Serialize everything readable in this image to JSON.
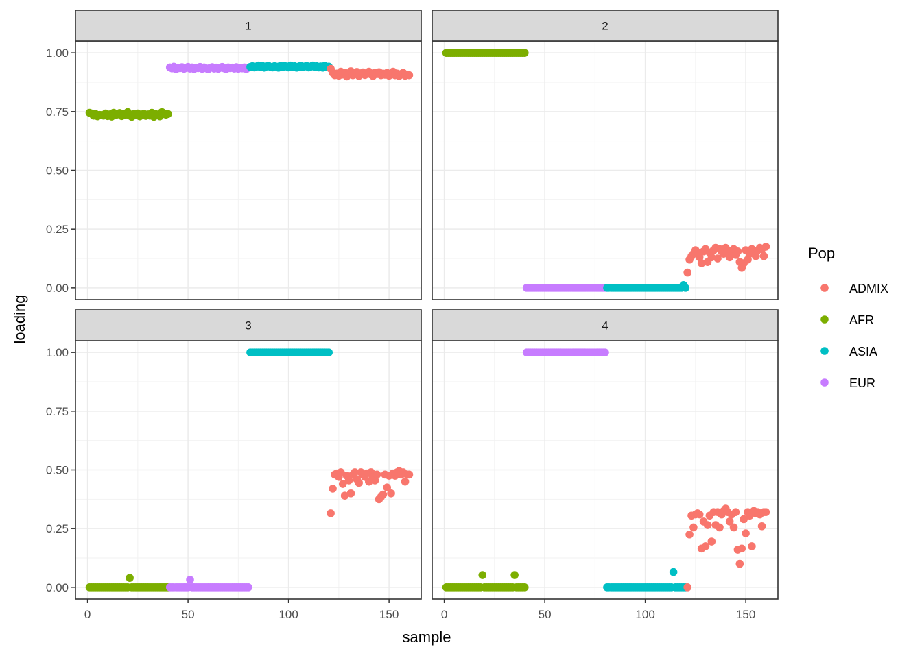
{
  "chart_data": {
    "type": "scatter",
    "facet_layout": "2x2",
    "xlabel": "sample",
    "ylabel": "loading",
    "xlim": [
      -6,
      166
    ],
    "ylim": [
      -0.05,
      1.05
    ],
    "x_ticks": [
      0,
      50,
      100,
      150
    ],
    "y_ticks": [
      0.0,
      0.25,
      0.5,
      0.75,
      1.0
    ],
    "x_tick_labels": [
      "0",
      "50",
      "100",
      "150"
    ],
    "y_tick_labels": [
      "0.00",
      "0.25",
      "0.50",
      "0.75",
      "1.00"
    ],
    "grid": true,
    "legend": {
      "title": "Pop",
      "position": "right",
      "entries": [
        {
          "label": "ADMIX",
          "color": "#F8766D"
        },
        {
          "label": "AFR",
          "color": "#7CAE00"
        },
        {
          "label": "ASIA",
          "color": "#00BFC4"
        },
        {
          "label": "EUR",
          "color": "#C77CFF"
        }
      ]
    },
    "panels": [
      {
        "strip": "1",
        "series": [
          {
            "name": "AFR",
            "x_range": [
              1,
              40
            ],
            "values": [
              0.745,
              0.742,
              0.733,
              0.74,
              0.73,
              0.736,
              0.735,
              0.733,
              0.742,
              0.731,
              0.738,
              0.729,
              0.745,
              0.735,
              0.74,
              0.744,
              0.731,
              0.741,
              0.737,
              0.748,
              0.733,
              0.728,
              0.739,
              0.736,
              0.742,
              0.73,
              0.735,
              0.741,
              0.732,
              0.738,
              0.733,
              0.745,
              0.728,
              0.739,
              0.736,
              0.73,
              0.748,
              0.742,
              0.737,
              0.74
            ]
          },
          {
            "name": "EUR",
            "x_range": [
              41,
              80
            ],
            "values": [
              0.938,
              0.934,
              0.941,
              0.93,
              0.937,
              0.935,
              0.939,
              0.932,
              0.936,
              0.94,
              0.933,
              0.938,
              0.931,
              0.937,
              0.935,
              0.94,
              0.932,
              0.938,
              0.934,
              0.93,
              0.936,
              0.939,
              0.933,
              0.937,
              0.932,
              0.936,
              0.94,
              0.934,
              0.931,
              0.938,
              0.935,
              0.937,
              0.933,
              0.939,
              0.932,
              0.936,
              0.934,
              0.938,
              0.931,
              0.937
            ]
          },
          {
            "name": "ASIA",
            "x_range": [
              81,
              120
            ],
            "values": [
              0.94,
              0.943,
              0.938,
              0.941,
              0.946,
              0.939,
              0.944,
              0.937,
              0.942,
              0.945,
              0.94,
              0.938,
              0.943,
              0.941,
              0.937,
              0.945,
              0.939,
              0.944,
              0.942,
              0.938,
              0.946,
              0.94,
              0.943,
              0.937,
              0.941,
              0.945,
              0.939,
              0.942,
              0.944,
              0.938,
              0.941,
              0.946,
              0.94,
              0.943,
              0.938,
              0.942,
              0.937,
              0.945,
              0.94,
              0.941
            ]
          },
          {
            "name": "ADMIX",
            "x_range": [
              121,
              160
            ],
            "values": [
              0.932,
              0.915,
              0.905,
              0.912,
              0.903,
              0.92,
              0.908,
              0.916,
              0.9,
              0.911,
              0.922,
              0.905,
              0.914,
              0.919,
              0.902,
              0.91,
              0.917,
              0.906,
              0.912,
              0.92,
              0.908,
              0.902,
              0.915,
              0.91,
              0.918,
              0.905,
              0.912,
              0.907,
              0.915,
              0.903,
              0.91,
              0.92,
              0.905,
              0.912,
              0.902,
              0.91,
              0.915,
              0.903,
              0.908,
              0.905
            ]
          }
        ]
      },
      {
        "strip": "2",
        "series": [
          {
            "name": "AFR",
            "x_range": [
              1,
              40
            ],
            "values": [
              1.0,
              1.0,
              1.0,
              1.0,
              1.0,
              1.0,
              1.0,
              1.0,
              1.0,
              1.0,
              1.0,
              1.0,
              1.0,
              1.0,
              1.0,
              1.0,
              1.0,
              1.0,
              1.0,
              1.0,
              1.0,
              1.0,
              1.0,
              1.0,
              1.0,
              1.0,
              1.0,
              1.0,
              1.0,
              1.0,
              1.0,
              1.0,
              1.0,
              1.0,
              1.0,
              1.0,
              1.0,
              1.0,
              1.0,
              1.0
            ]
          },
          {
            "name": "EUR",
            "x_range": [
              41,
              80
            ],
            "values": [
              0.0,
              0.0,
              0.0,
              0.0,
              0.0,
              0.0,
              0.0,
              0.0,
              0.0,
              0.0,
              0.0,
              0.0,
              0.0,
              0.0,
              0.0,
              0.0,
              0.0,
              0.0,
              0.0,
              0.0,
              0.0,
              0.0,
              0.0,
              0.0,
              0.0,
              0.0,
              0.0,
              0.0,
              0.0,
              0.0,
              0.0,
              0.0,
              0.0,
              0.0,
              0.0,
              0.0,
              0.0,
              0.0,
              0.0,
              0.0
            ]
          },
          {
            "name": "ASIA",
            "x_range": [
              81,
              120
            ],
            "values": [
              0.0,
              0.0,
              0.0,
              0.0,
              0.0,
              0.0,
              0.0,
              0.0,
              0.0,
              0.0,
              0.0,
              0.0,
              0.0,
              0.0,
              0.0,
              0.0,
              0.0,
              0.0,
              0.0,
              0.0,
              0.0,
              0.0,
              0.0,
              0.0,
              0.0,
              0.0,
              0.0,
              0.0,
              0.0,
              0.0,
              0.0,
              0.0,
              0.0,
              0.0,
              0.0,
              0.0,
              0.0,
              0.0,
              0.012,
              0.0
            ]
          },
          {
            "name": "ADMIX",
            "x_range": [
              121,
              160
            ],
            "values": [
              0.065,
              0.12,
              0.135,
              0.145,
              0.16,
              0.15,
              0.13,
              0.105,
              0.155,
              0.165,
              0.11,
              0.15,
              0.13,
              0.16,
              0.17,
              0.125,
              0.165,
              0.155,
              0.145,
              0.17,
              0.16,
              0.13,
              0.15,
              0.165,
              0.14,
              0.155,
              0.11,
              0.085,
              0.105,
              0.16,
              0.12,
              0.145,
              0.165,
              0.15,
              0.135,
              0.16,
              0.17,
              0.165,
              0.135,
              0.175
            ]
          }
        ]
      },
      {
        "strip": "3",
        "series": [
          {
            "name": "AFR",
            "x_range": [
              1,
              40
            ],
            "values": [
              0.0,
              0.0,
              0.0,
              0.0,
              0.0,
              0.0,
              0.0,
              0.0,
              0.0,
              0.0,
              0.0,
              0.0,
              0.0,
              0.0,
              0.0,
              0.0,
              0.0,
              0.0,
              0.0,
              0.0,
              0.04,
              0.0,
              0.0,
              0.0,
              0.0,
              0.0,
              0.0,
              0.0,
              0.0,
              0.0,
              0.0,
              0.0,
              0.0,
              0.0,
              0.0,
              0.0,
              0.0,
              0.0,
              0.0,
              0.0
            ]
          },
          {
            "name": "EUR",
            "x_range": [
              41,
              80
            ],
            "values": [
              0.0,
              0.0,
              0.0,
              0.0,
              0.0,
              0.0,
              0.0,
              0.0,
              0.0,
              0.0,
              0.032,
              0.0,
              0.0,
              0.0,
              0.0,
              0.0,
              0.0,
              0.0,
              0.0,
              0.0,
              0.0,
              0.0,
              0.0,
              0.0,
              0.0,
              0.0,
              0.0,
              0.0,
              0.0,
              0.0,
              0.0,
              0.0,
              0.0,
              0.0,
              0.0,
              0.0,
              0.0,
              0.0,
              0.0,
              0.0
            ]
          },
          {
            "name": "ASIA",
            "x_range": [
              81,
              120
            ],
            "values": [
              1.0,
              1.0,
              1.0,
              1.0,
              1.0,
              1.0,
              1.0,
              1.0,
              1.0,
              1.0,
              1.0,
              1.0,
              1.0,
              1.0,
              1.0,
              1.0,
              1.0,
              1.0,
              1.0,
              1.0,
              1.0,
              1.0,
              1.0,
              1.0,
              1.0,
              1.0,
              1.0,
              1.0,
              1.0,
              1.0,
              1.0,
              1.0,
              1.0,
              1.0,
              1.0,
              1.0,
              1.0,
              1.0,
              1.0,
              1.0
            ]
          },
          {
            "name": "ADMIX",
            "x_range": [
              121,
              160
            ],
            "values": [
              0.315,
              0.42,
              0.48,
              0.485,
              0.47,
              0.49,
              0.44,
              0.39,
              0.475,
              0.455,
              0.4,
              0.48,
              0.49,
              0.46,
              0.445,
              0.49,
              0.48,
              0.47,
              0.485,
              0.45,
              0.49,
              0.47,
              0.455,
              0.48,
              0.375,
              0.385,
              0.395,
              0.48,
              0.425,
              0.475,
              0.4,
              0.485,
              0.475,
              0.49,
              0.495,
              0.48,
              0.49,
              0.45,
              0.48,
              0.48
            ]
          }
        ]
      },
      {
        "strip": "4",
        "series": [
          {
            "name": "AFR",
            "x_range": [
              1,
              40
            ],
            "values": [
              0.0,
              0.0,
              0.0,
              0.0,
              0.0,
              0.0,
              0.0,
              0.0,
              0.0,
              0.0,
              0.0,
              0.0,
              0.0,
              0.0,
              0.0,
              0.0,
              0.0,
              0.0,
              0.052,
              0.0,
              0.0,
              0.0,
              0.0,
              0.0,
              0.0,
              0.0,
              0.0,
              0.0,
              0.0,
              0.0,
              0.0,
              0.0,
              0.0,
              0.0,
              0.052,
              0.0,
              0.0,
              0.0,
              0.0,
              0.0
            ]
          },
          {
            "name": "EUR",
            "x_range": [
              41,
              80
            ],
            "values": [
              1.0,
              1.0,
              1.0,
              1.0,
              1.0,
              1.0,
              1.0,
              1.0,
              1.0,
              1.0,
              1.0,
              1.0,
              1.0,
              1.0,
              1.0,
              1.0,
              1.0,
              1.0,
              1.0,
              1.0,
              1.0,
              1.0,
              1.0,
              1.0,
              1.0,
              1.0,
              1.0,
              1.0,
              1.0,
              1.0,
              1.0,
              1.0,
              1.0,
              1.0,
              1.0,
              1.0,
              1.0,
              1.0,
              1.0,
              1.0
            ]
          },
          {
            "name": "ASIA",
            "x_range": [
              81,
              120
            ],
            "values": [
              0.0,
              0.0,
              0.0,
              0.0,
              0.0,
              0.0,
              0.0,
              0.0,
              0.0,
              0.0,
              0.0,
              0.0,
              0.0,
              0.0,
              0.0,
              0.0,
              0.0,
              0.0,
              0.0,
              0.0,
              0.0,
              0.0,
              0.0,
              0.0,
              0.0,
              0.0,
              0.0,
              0.0,
              0.0,
              0.0,
              0.0,
              0.0,
              0.0,
              0.065,
              0.0,
              0.0,
              0.0,
              0.0,
              0.0,
              0.0
            ]
          },
          {
            "name": "ADMIX",
            "x_range": [
              121,
              160
            ],
            "values": [
              0.0,
              0.225,
              0.305,
              0.255,
              0.31,
              0.315,
              0.31,
              0.165,
              0.28,
              0.175,
              0.265,
              0.305,
              0.195,
              0.32,
              0.265,
              0.32,
              0.255,
              0.31,
              0.325,
              0.335,
              0.32,
              0.28,
              0.31,
              0.255,
              0.32,
              0.16,
              0.1,
              0.165,
              0.29,
              0.23,
              0.32,
              0.305,
              0.175,
              0.325,
              0.315,
              0.32,
              0.31,
              0.26,
              0.32,
              0.32
            ]
          }
        ]
      }
    ]
  }
}
